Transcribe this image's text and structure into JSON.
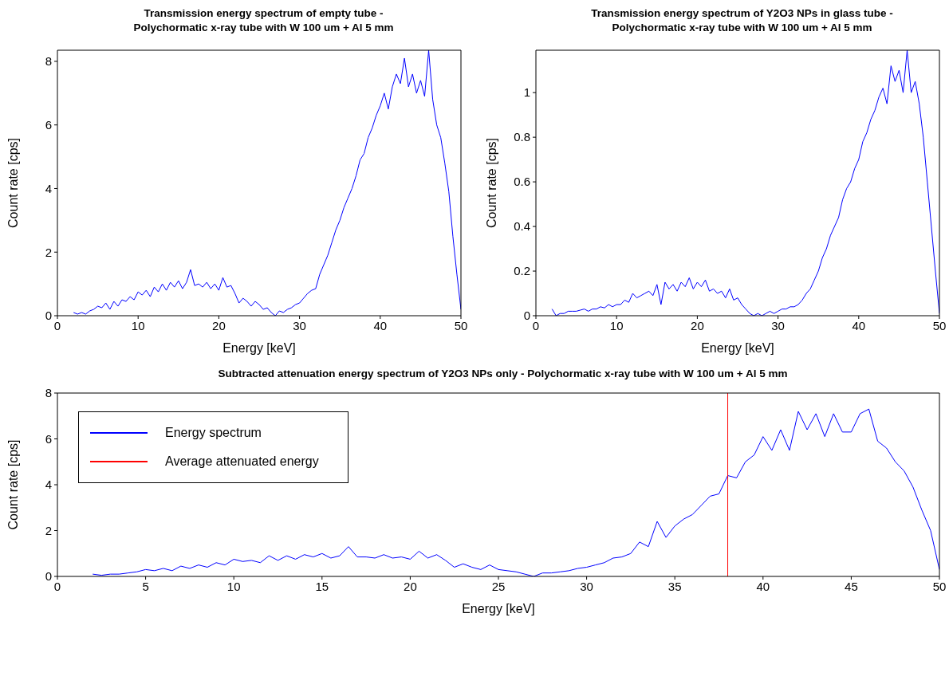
{
  "chart_data": [
    {
      "type": "line",
      "title": "Transmission energy spectrum of empty tube -\nPolychormatic x-ray tube with W 100 um + Al 5 mm",
      "xlabel": "Energy [keV]",
      "ylabel": "Count rate [cps]",
      "xlim": [
        0,
        50
      ],
      "xticks": [
        0,
        10,
        20,
        30,
        40,
        50
      ],
      "ylim": [
        0,
        8.35
      ],
      "yticks": [
        0,
        2,
        4,
        6,
        8
      ],
      "x": [
        2,
        2.5,
        3,
        3.5,
        4,
        4.5,
        5,
        5.5,
        6,
        6.5,
        7,
        7.5,
        8,
        8.5,
        9,
        9.5,
        10,
        10.5,
        11,
        11.5,
        12,
        12.5,
        13,
        13.5,
        14,
        14.5,
        15,
        15.5,
        16,
        16.5,
        17,
        17.5,
        18,
        18.5,
        19,
        19.5,
        20,
        20.5,
        21,
        21.5,
        22,
        22.5,
        23,
        23.5,
        24,
        24.5,
        25,
        25.5,
        26,
        26.5,
        27,
        27.5,
        28,
        28.5,
        29,
        29.5,
        30,
        30.5,
        31,
        31.5,
        32,
        32.5,
        33,
        33.5,
        34,
        34.5,
        35,
        35.5,
        36,
        36.5,
        37,
        37.5,
        38,
        38.5,
        39,
        39.5,
        40,
        40.5,
        41,
        41.5,
        42,
        42.5,
        43,
        43.5,
        44,
        44.5,
        45,
        45.5,
        46,
        46.5,
        47,
        47.5,
        48,
        48.5,
        49,
        49.5,
        50
      ],
      "series": [
        {
          "color": "#0000ff",
          "values": [
            0.1,
            0.05,
            0.1,
            0.05,
            0.15,
            0.2,
            0.3,
            0.25,
            0.4,
            0.2,
            0.45,
            0.3,
            0.5,
            0.45,
            0.6,
            0.5,
            0.75,
            0.65,
            0.8,
            0.6,
            0.9,
            0.75,
            1.0,
            0.8,
            1.05,
            0.9,
            1.1,
            0.85,
            1.05,
            1.45,
            0.95,
            1.0,
            0.9,
            1.05,
            0.85,
            1.0,
            0.8,
            1.2,
            0.9,
            0.95,
            0.7,
            0.4,
            0.55,
            0.45,
            0.3,
            0.45,
            0.35,
            0.2,
            0.25,
            0.1,
            0.0,
            0.15,
            0.1,
            0.2,
            0.25,
            0.35,
            0.4,
            0.55,
            0.7,
            0.8,
            0.85,
            1.3,
            1.6,
            1.9,
            2.3,
            2.7,
            3.0,
            3.4,
            3.7,
            4.0,
            4.4,
            4.9,
            5.1,
            5.6,
            5.9,
            6.3,
            6.6,
            7.0,
            6.5,
            7.2,
            7.6,
            7.3,
            8.1,
            7.2,
            7.6,
            7.0,
            7.4,
            6.9,
            8.35,
            6.8,
            6.0,
            5.6,
            4.8,
            3.9,
            2.5,
            1.3,
            0.2
          ]
        }
      ]
    },
    {
      "type": "line",
      "title": "Transmission energy spectrum of Y2O3 NPs in glass tube -\nPolychormatic x-ray tube with W 100 um + Al 5 mm",
      "xlabel": "Energy [keV]",
      "ylabel": "Count rate [cps]",
      "xlim": [
        0,
        50
      ],
      "xticks": [
        0,
        10,
        20,
        30,
        40,
        50
      ],
      "ylim": [
        0,
        1.19
      ],
      "yticks": [
        0,
        0.2,
        0.4,
        0.6,
        0.8,
        1
      ],
      "x": [
        2,
        2.5,
        3,
        3.5,
        4,
        4.5,
        5,
        5.5,
        6,
        6.5,
        7,
        7.5,
        8,
        8.5,
        9,
        9.5,
        10,
        10.5,
        11,
        11.5,
        12,
        12.5,
        13,
        13.5,
        14,
        14.5,
        15,
        15.5,
        16,
        16.5,
        17,
        17.5,
        18,
        18.5,
        19,
        19.5,
        20,
        20.5,
        21,
        21.5,
        22,
        22.5,
        23,
        23.5,
        24,
        24.5,
        25,
        25.5,
        26,
        26.5,
        27,
        27.5,
        28,
        28.5,
        29,
        29.5,
        30,
        30.5,
        31,
        31.5,
        32,
        32.5,
        33,
        33.5,
        34,
        34.5,
        35,
        35.5,
        36,
        36.5,
        37,
        37.5,
        38,
        38.5,
        39,
        39.5,
        40,
        40.5,
        41,
        41.5,
        42,
        42.5,
        43,
        43.5,
        44,
        44.5,
        45,
        45.5,
        46,
        46.5,
        47,
        47.5,
        48,
        48.5,
        49,
        49.5,
        50
      ],
      "series": [
        {
          "color": "#0000ff",
          "values": [
            0.03,
            0,
            0.01,
            0.01,
            0.02,
            0.02,
            0.02,
            0.025,
            0.03,
            0.02,
            0.03,
            0.03,
            0.04,
            0.035,
            0.05,
            0.04,
            0.05,
            0.05,
            0.07,
            0.06,
            0.1,
            0.08,
            0.09,
            0.1,
            0.11,
            0.09,
            0.14,
            0.05,
            0.15,
            0.12,
            0.14,
            0.11,
            0.15,
            0.13,
            0.17,
            0.12,
            0.15,
            0.13,
            0.16,
            0.11,
            0.12,
            0.1,
            0.11,
            0.08,
            0.12,
            0.07,
            0.08,
            0.05,
            0.03,
            0.01,
            0,
            0.01,
            0,
            0.01,
            0.02,
            0.01,
            0.02,
            0.03,
            0.03,
            0.04,
            0.04,
            0.05,
            0.07,
            0.1,
            0.12,
            0.16,
            0.2,
            0.26,
            0.3,
            0.36,
            0.4,
            0.44,
            0.52,
            0.57,
            0.6,
            0.66,
            0.7,
            0.78,
            0.82,
            0.88,
            0.92,
            0.98,
            1.02,
            0.95,
            1.12,
            1.05,
            1.1,
            1.0,
            1.19,
            1.0,
            1.05,
            0.95,
            0.8,
            0.6,
            0.4,
            0.2,
            0.01
          ]
        }
      ]
    },
    {
      "type": "line",
      "title": "Subtracted attenuation energy spectrum of Y2O3 NPs only - Polychormatic x-ray tube with W 100 um + Al 5 mm",
      "xlabel": "Energy [keV]",
      "ylabel": "Count rate [cps]",
      "xlim": [
        0,
        50
      ],
      "xticks": [
        0,
        5,
        10,
        15,
        20,
        25,
        30,
        35,
        40,
        45,
        50
      ],
      "ylim": [
        0,
        8
      ],
      "yticks": [
        0,
        2,
        4,
        6,
        8
      ],
      "legend": "top left",
      "x": [
        2,
        2.5,
        3,
        3.5,
        4,
        4.5,
        5,
        5.5,
        6,
        6.5,
        7,
        7.5,
        8,
        8.5,
        9,
        9.5,
        10,
        10.5,
        11,
        11.5,
        12,
        12.5,
        13,
        13.5,
        14,
        14.5,
        15,
        15.5,
        16,
        16.5,
        17,
        17.5,
        18,
        18.5,
        19,
        19.5,
        20,
        20.5,
        21,
        21.5,
        22,
        22.5,
        23,
        23.5,
        24,
        24.5,
        25,
        25.5,
        26,
        26.5,
        27,
        27.5,
        28,
        28.5,
        29,
        29.5,
        30,
        30.5,
        31,
        31.5,
        32,
        32.5,
        33,
        33.5,
        34,
        34.5,
        35,
        35.5,
        36,
        36.5,
        37,
        37.5,
        38,
        38.5,
        39,
        39.5,
        40,
        40.5,
        41,
        41.5,
        42,
        42.5,
        43,
        43.5,
        44,
        44.5,
        45,
        45.5,
        46,
        46.5,
        47,
        47.5,
        48,
        48.5,
        49,
        49.5,
        50
      ],
      "series": [
        {
          "name": "Energy spectrum",
          "color": "#0000ff",
          "values": [
            0.1,
            0.05,
            0.1,
            0.1,
            0.15,
            0.2,
            0.3,
            0.25,
            0.35,
            0.25,
            0.45,
            0.35,
            0.5,
            0.4,
            0.6,
            0.5,
            0.75,
            0.65,
            0.7,
            0.6,
            0.9,
            0.7,
            0.9,
            0.75,
            0.95,
            0.85,
            1.0,
            0.8,
            0.9,
            1.3,
            0.85,
            0.85,
            0.8,
            0.95,
            0.8,
            0.85,
            0.75,
            1.1,
            0.8,
            0.95,
            0.7,
            0.4,
            0.55,
            0.4,
            0.3,
            0.5,
            0.3,
            0.25,
            0.2,
            0.1,
            0.0,
            0.15,
            0.15,
            0.2,
            0.25,
            0.35,
            0.4,
            0.5,
            0.6,
            0.8,
            0.85,
            1.0,
            1.5,
            1.3,
            2.4,
            1.7,
            2.2,
            2.5,
            2.7,
            3.1,
            3.5,
            3.6,
            4.4,
            4.3,
            5.0,
            5.3,
            6.1,
            5.5,
            6.4,
            5.5,
            7.2,
            6.4,
            7.1,
            6.1,
            7.1,
            6.3,
            6.3,
            7.1,
            7.3,
            5.9,
            5.6,
            5.0,
            4.6,
            3.9,
            2.9,
            2.0,
            0.3
          ]
        },
        {
          "name": "Average attenuated energy",
          "color": "#ff0000",
          "type": "line",
          "x": [
            38,
            38
          ],
          "values": [
            0,
            8
          ]
        }
      ]
    }
  ]
}
